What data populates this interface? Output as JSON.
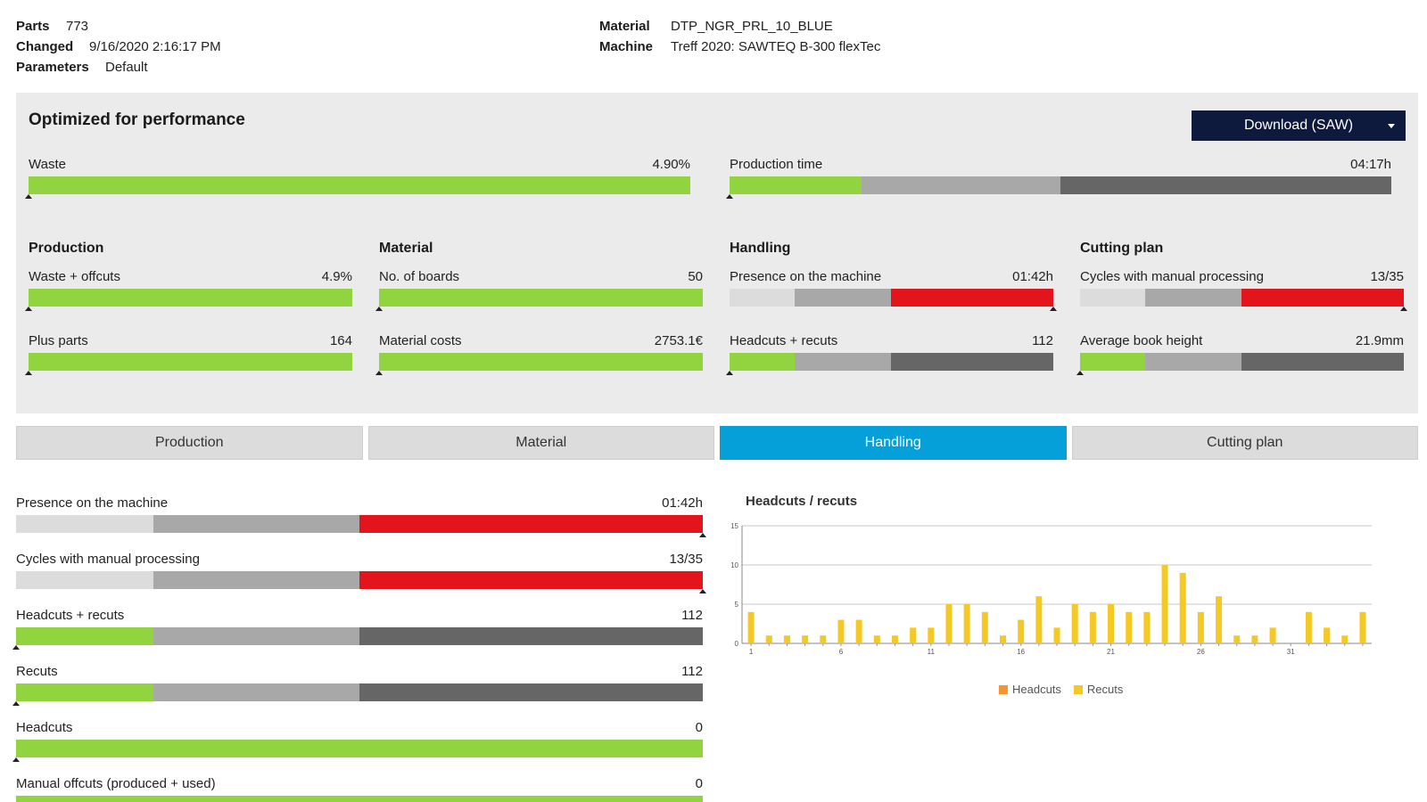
{
  "header": {
    "parts_label": "Parts",
    "parts_value": "773",
    "changed_label": "Changed",
    "changed_value": "9/16/2020 2:16:17 PM",
    "parameters_label": "Parameters",
    "parameters_value": "Default",
    "material_label": "Material",
    "material_value": "DTP_NGR_PRL_10_BLUE",
    "machine_label": "Machine",
    "machine_value": "Treff 2020: SAWTEQ B-300 flexTec"
  },
  "panel": {
    "title": "Optimized for performance",
    "download_label": "Download (SAW)",
    "waste": {
      "label": "Waste",
      "value": "4.90%"
    },
    "production_time": {
      "label": "Production time",
      "value": "04:17h"
    },
    "sections": {
      "production": "Production",
      "material": "Material",
      "handling": "Handling",
      "cutting_plan": "Cutting plan"
    },
    "waste_offcuts": {
      "label": "Waste + offcuts",
      "value": "4.9%"
    },
    "plus_parts": {
      "label": "Plus parts",
      "value": "164"
    },
    "no_of_boards": {
      "label": "No. of boards",
      "value": "50"
    },
    "material_costs": {
      "label": "Material costs",
      "value": "2753.1€"
    },
    "presence_machine": {
      "label": "Presence on the machine",
      "value": "01:42h"
    },
    "headcuts_recuts": {
      "label": "Headcuts + recuts",
      "value": "112"
    },
    "cycles_manual": {
      "label": "Cycles with manual processing",
      "value": "13/35"
    },
    "avg_book_height": {
      "label": "Average book height",
      "value": "21.9mm"
    }
  },
  "tabs": [
    {
      "label": "Production",
      "active": false
    },
    {
      "label": "Material",
      "active": false
    },
    {
      "label": "Handling",
      "active": true
    },
    {
      "label": "Cutting plan",
      "active": false
    }
  ],
  "handling": {
    "presence": {
      "label": "Presence on the machine",
      "value": "01:42h"
    },
    "cycles": {
      "label": "Cycles with manual processing",
      "value": "13/35"
    },
    "headcuts_recuts": {
      "label": "Headcuts + recuts",
      "value": "112"
    },
    "recuts": {
      "label": "Recuts",
      "value": "112"
    },
    "headcuts": {
      "label": "Headcuts",
      "value": "0"
    },
    "manual_offcuts": {
      "label": "Manual offcuts (produced + used)",
      "value": "0"
    }
  },
  "colors": {
    "green": "#92d43f",
    "light_gray": "#dcdcdc",
    "mid_gray": "#a8a8a8",
    "dark_gray": "#666666",
    "red": "#e3141c",
    "tab_active": "#059fd9",
    "button": "#0d1a3d",
    "headcuts": "#f79432",
    "recuts": "#f5c824"
  },
  "chart_data": {
    "type": "bar",
    "title": "Headcuts / recuts",
    "x": [
      1,
      2,
      3,
      4,
      5,
      6,
      7,
      8,
      9,
      10,
      11,
      12,
      13,
      14,
      15,
      16,
      17,
      18,
      19,
      20,
      21,
      22,
      23,
      24,
      25,
      26,
      27,
      28,
      29,
      30,
      31,
      32,
      33,
      34,
      35
    ],
    "x_tick_labels": [
      "1",
      "6",
      "11",
      "16",
      "21",
      "26",
      "31"
    ],
    "ylim": [
      0,
      15
    ],
    "y_ticks": [
      0,
      5,
      10,
      15
    ],
    "grid": true,
    "legend_position": "bottom",
    "series": [
      {
        "name": "Headcuts",
        "values": [
          0,
          0,
          0,
          0,
          0,
          0,
          0,
          0,
          0,
          0,
          0,
          0,
          0,
          0,
          0,
          0,
          0,
          0,
          0,
          0,
          0,
          0,
          0,
          0,
          0,
          0,
          0,
          0,
          0,
          0,
          0,
          0,
          0,
          0,
          0
        ]
      },
      {
        "name": "Recuts",
        "values": [
          4,
          1,
          1,
          1,
          1,
          3,
          3,
          1,
          1,
          2,
          2,
          5,
          5,
          4,
          1,
          3,
          6,
          2,
          5,
          4,
          5,
          4,
          4,
          10,
          9,
          4,
          6,
          1,
          1,
          2,
          0,
          4,
          2,
          1,
          4
        ]
      }
    ]
  }
}
